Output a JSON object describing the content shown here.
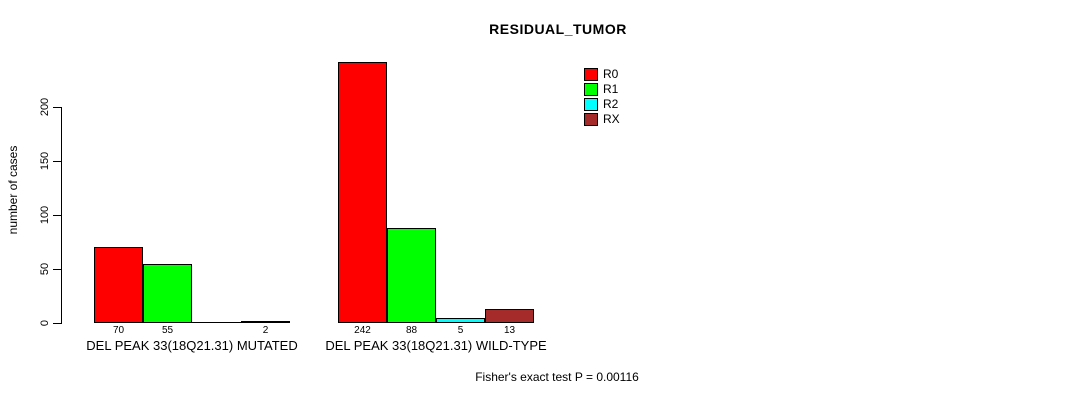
{
  "chart_data": {
    "type": "bar",
    "title": "RESIDUAL_TUMOR",
    "ylabel": "number of cases",
    "xlabel": "",
    "y_ticks": [
      0,
      50,
      100,
      150,
      200
    ],
    "ylim": [
      0,
      250
    ],
    "grid": false,
    "legend_position": "top-right-inside",
    "categories": [
      "DEL PEAK 33(18Q21.31) MUTATED",
      "DEL PEAK 33(18Q21.31) WILD-TYPE"
    ],
    "series": [
      {
        "name": "R0",
        "color": "#FF0000",
        "values": [
          70,
          242
        ]
      },
      {
        "name": "R1",
        "color": "#00FF00",
        "values": [
          55,
          88
        ]
      },
      {
        "name": "R2",
        "color": "#00FFFF",
        "values": [
          0,
          5
        ]
      },
      {
        "name": "RX",
        "color": "#A52A2A",
        "values": [
          2,
          13
        ]
      }
    ],
    "bar_value_labels": [
      [
        "70",
        "55",
        "",
        "2"
      ],
      [
        "242",
        "88",
        "5",
        "13"
      ]
    ],
    "annotation": "Fisher's exact test P = 0.00116"
  },
  "colors": {
    "axis": "#000000",
    "text": "#000000",
    "background": "#FFFFFF"
  }
}
